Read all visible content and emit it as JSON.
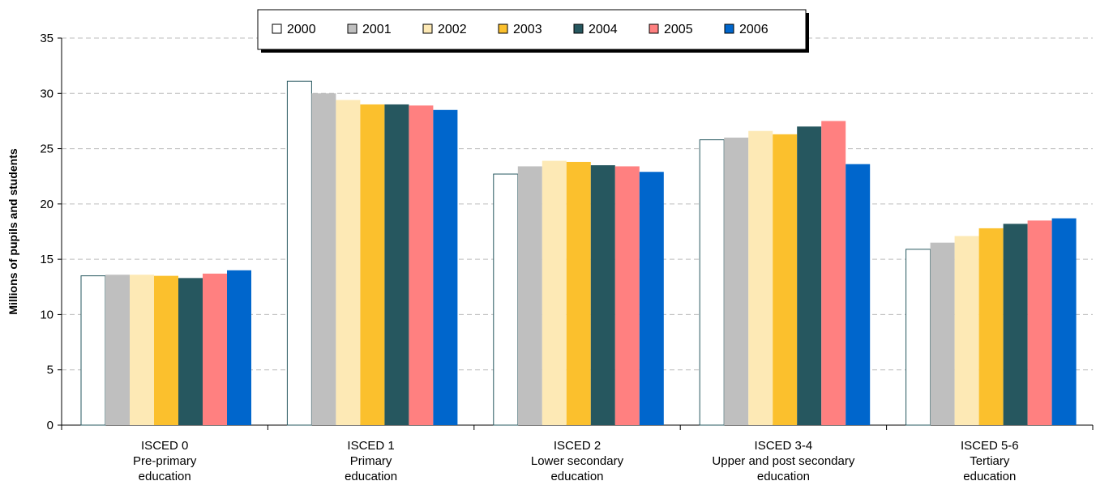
{
  "chart_data": {
    "type": "bar",
    "title": "",
    "ylabel": "Millions of pupils and students",
    "xlabel": "",
    "ylim": [
      0,
      35
    ],
    "yticks": [
      0,
      5,
      10,
      15,
      20,
      25,
      30,
      35
    ],
    "grid": true,
    "legend_position": "top-center",
    "categories": [
      [
        "ISCED 0",
        "Pre-primary",
        "education"
      ],
      [
        "ISCED 1",
        "Primary",
        "education"
      ],
      [
        "ISCED 2",
        "Lower secondary",
        "education"
      ],
      [
        "ISCED 3-4",
        "Upper and post secondary",
        "education"
      ],
      [
        "ISCED 5-6",
        "Tertiary",
        "education"
      ]
    ],
    "series": [
      {
        "name": "2000",
        "color": "#FFFFFF",
        "values": [
          13.5,
          31.1,
          22.7,
          25.8,
          15.9
        ]
      },
      {
        "name": "2001",
        "color": "#BFBFBF",
        "values": [
          13.6,
          30.0,
          23.4,
          26.0,
          16.5
        ]
      },
      {
        "name": "2002",
        "color": "#FDE9B5",
        "values": [
          13.6,
          29.4,
          23.9,
          26.6,
          17.1
        ]
      },
      {
        "name": "2003",
        "color": "#FBC02D",
        "values": [
          13.5,
          29.0,
          23.8,
          26.3,
          17.8
        ]
      },
      {
        "name": "2004",
        "color": "#26575F",
        "values": [
          13.3,
          29.0,
          23.5,
          27.0,
          18.2
        ]
      },
      {
        "name": "2005",
        "color": "#FF8080",
        "values": [
          13.7,
          28.9,
          23.4,
          27.5,
          18.5
        ]
      },
      {
        "name": "2006",
        "color": "#0066CC",
        "values": [
          14.0,
          28.5,
          22.9,
          23.6,
          18.7
        ]
      }
    ]
  }
}
